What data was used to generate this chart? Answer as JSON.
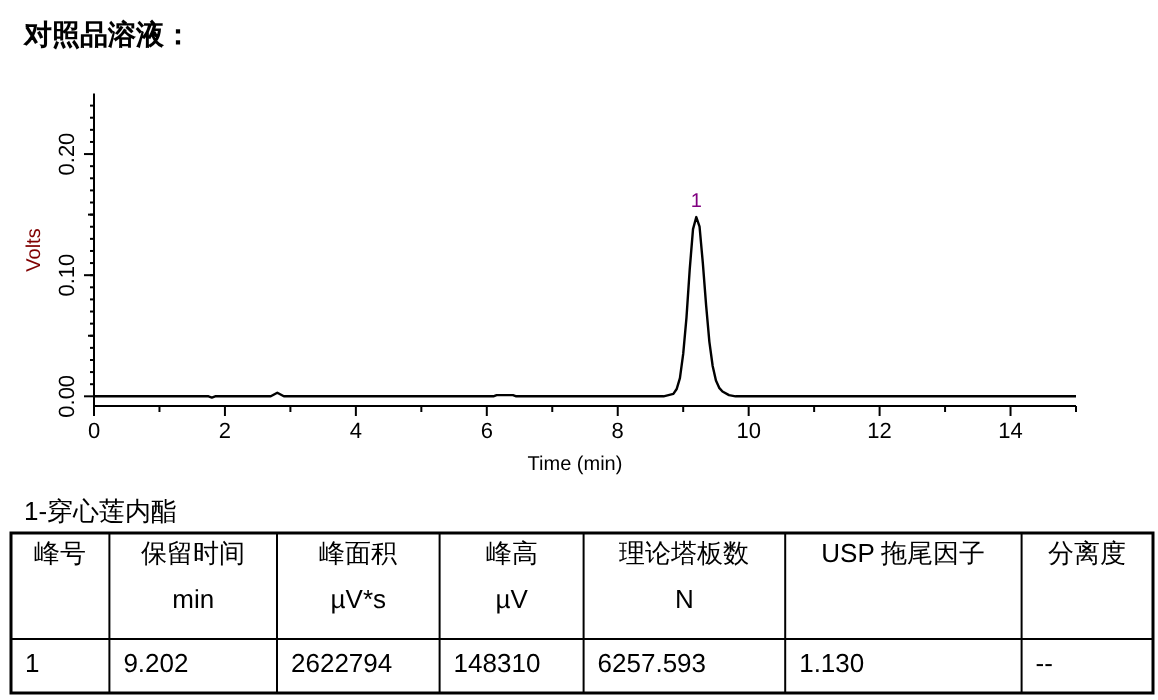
{
  "chart_data": {
    "type": "line",
    "title": "对照品溶液：",
    "xlabel": "Time (min)",
    "ylabel": "Volts",
    "xlim": [
      0,
      15
    ],
    "xticks": [
      0,
      {
        "value": 1,
        "label": null
      },
      2,
      {
        "value": 3,
        "label": null
      },
      4,
      {
        "value": 5,
        "label": null
      },
      6,
      {
        "value": 7,
        "label": null
      },
      8,
      {
        "value": 9,
        "label": null
      },
      10,
      {
        "value": 11,
        "label": null
      },
      12,
      {
        "value": 13,
        "label": null
      },
      14,
      {
        "value": 15,
        "label": null
      }
    ],
    "ylim": [
      -0.008,
      0.25
    ],
    "yticks": [
      {
        "value": 0,
        "label": "0.00"
      },
      {
        "value": 0.05,
        "label": null
      },
      {
        "value": 0.1,
        "label": "0.10"
      },
      {
        "value": 0.15,
        "label": null
      },
      {
        "value": 0.2,
        "label": "0.20"
      }
    ],
    "grid": false,
    "marker": "none",
    "line_style": "solid",
    "series": [
      {
        "color": "#000000",
        "x": [
          0,
          1.75,
          1.8,
          1.85,
          2.7,
          2.8,
          2.9,
          6.1,
          6.15,
          6.4,
          6.45,
          8.7,
          8.85,
          8.9,
          8.95,
          9.0,
          9.05,
          9.1,
          9.15,
          9.2,
          9.25,
          9.3,
          9.35,
          9.4,
          9.45,
          9.5,
          9.55,
          9.6,
          9.7,
          9.8,
          15
        ],
        "values": [
          0,
          0,
          -0.001,
          0,
          0,
          0.003,
          0,
          0,
          0.001,
          0.001,
          0,
          0,
          0.002,
          0.006,
          0.015,
          0.035,
          0.065,
          0.105,
          0.138,
          0.148,
          0.14,
          0.11,
          0.075,
          0.045,
          0.025,
          0.013,
          0.007,
          0.004,
          0.001,
          0,
          0
        ]
      }
    ],
    "annotations": [
      {
        "text": "1",
        "x": 9.202,
        "y": 0.148
      },
      "1-穿心莲内酯",
      "峰号",
      "保留时间",
      "峰面积",
      "峰高",
      "理论塔板数",
      "USP 拖尾因子",
      "分离度",
      "min",
      "µV*s",
      "µV",
      "N",
      "1",
      "9.202",
      "2622794",
      "148310",
      "6257.593",
      "1.130",
      "--"
    ]
  }
}
